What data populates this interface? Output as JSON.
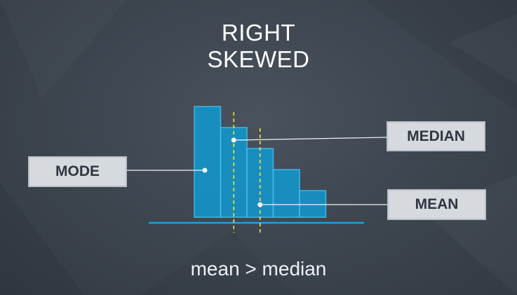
{
  "title": {
    "line1": "RIGHT",
    "line2": "SKEWED"
  },
  "labels": {
    "mode": "MODE",
    "median": "MEDIAN",
    "mean": "MEAN"
  },
  "caption": "mean > median",
  "colors": {
    "bar_fill": "#1593c6",
    "bar_stroke": "#3fc0ee",
    "baseline": "#1aa3dd",
    "median_line": "#f2e437",
    "mean_line": "#f2e437",
    "connector": "#f0f3f6"
  },
  "chart_data": {
    "type": "bar",
    "values": [
      158,
      128,
      98,
      68,
      38
    ],
    "markers": [
      {
        "label": "MEDIAN",
        "bin_position": 1.5
      },
      {
        "label": "MEAN",
        "bin_position": 2.5
      }
    ]
  }
}
